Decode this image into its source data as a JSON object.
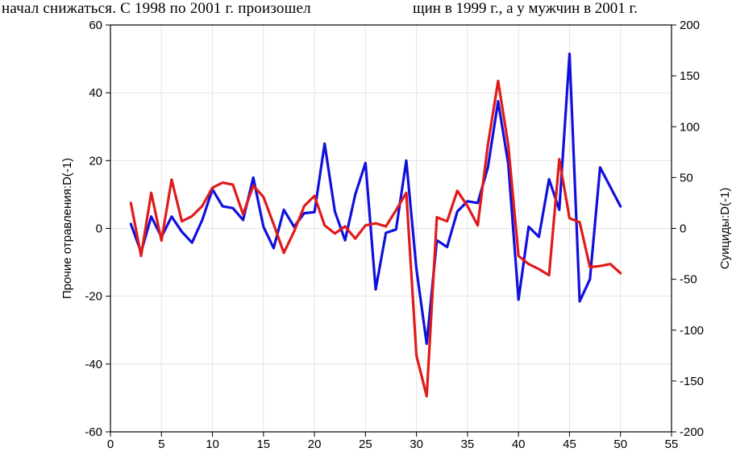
{
  "caption": {
    "left_text": "начал снижаться. С 1998 по 2001 г. произошел",
    "right_text": "щин в 1999 г., а у мужчин в 2001 г."
  },
  "chart_data": {
    "type": "line",
    "xlabel": "",
    "ylabel_left": "Прочие отравления:D(-1)",
    "ylabel_right": "Суициды:D(-1)",
    "xlim": [
      0,
      55
    ],
    "ylim_left": [
      -60,
      60
    ],
    "ylim_right": [
      -200,
      200
    ],
    "x_ticks": [
      0,
      5,
      10,
      15,
      20,
      25,
      30,
      35,
      40,
      45,
      50,
      55
    ],
    "y_left_ticks": [
      -60,
      -40,
      -20,
      0,
      20,
      40,
      60
    ],
    "y_right_ticks": [
      -200,
      -150,
      -100,
      -50,
      0,
      50,
      100,
      150,
      200
    ],
    "grid": true,
    "series": [
      {
        "axis": "left",
        "color": "#1010dd",
        "x": [
          2,
          3,
          4,
          5,
          6,
          7,
          8,
          9,
          10,
          11,
          12,
          13,
          14,
          15,
          16,
          17,
          18,
          19,
          20,
          21,
          22,
          23,
          24,
          25,
          26,
          27,
          28,
          29,
          30,
          31,
          32,
          33,
          34,
          35,
          36,
          37,
          38,
          39,
          40,
          41,
          42,
          43,
          44,
          45,
          46,
          47,
          48,
          50
        ],
        "values": [
          1.3,
          -7.0,
          3.5,
          -2.5,
          3.5,
          -1.0,
          -4.2,
          2.5,
          11.5,
          6.5,
          6.0,
          2.5,
          15.0,
          0.5,
          -5.8,
          5.5,
          0.5,
          4.5,
          4.8,
          25.0,
          5.0,
          -3.5,
          10.0,
          19.3,
          -18.0,
          -1.3,
          -0.3,
          20.0,
          -12.0,
          -34.0,
          -3.5,
          -5.5,
          5.0,
          8.0,
          7.5,
          18.0,
          37.5,
          19.0,
          -21.0,
          0.5,
          -2.5,
          14.5,
          5.5,
          51.5,
          -21.5,
          -15.0,
          18.0,
          6.5
        ]
      },
      {
        "axis": "right",
        "color": "#e01a1a",
        "x": [
          2,
          3,
          4,
          5,
          6,
          7,
          8,
          9,
          10,
          11,
          12,
          13,
          14,
          15,
          16,
          17,
          18,
          19,
          20,
          21,
          22,
          23,
          24,
          25,
          26,
          27,
          28,
          29,
          30,
          31,
          32,
          33,
          34,
          35,
          36,
          37,
          38,
          39,
          40,
          41,
          42,
          43,
          44,
          45,
          46,
          47,
          48,
          49,
          50
        ],
        "values": [
          25,
          -27,
          35,
          -12,
          48,
          7,
          12,
          22,
          40,
          45,
          43,
          14,
          42,
          31,
          4,
          -24,
          -3,
          22,
          32,
          3,
          -5,
          2,
          -10,
          3,
          5,
          2,
          18,
          35,
          -125,
          -165,
          11,
          7,
          37,
          22,
          3,
          82,
          145,
          82,
          -27,
          -35,
          -40,
          -46,
          68,
          10,
          6,
          -38,
          -37,
          -35,
          -44
        ]
      }
    ]
  }
}
